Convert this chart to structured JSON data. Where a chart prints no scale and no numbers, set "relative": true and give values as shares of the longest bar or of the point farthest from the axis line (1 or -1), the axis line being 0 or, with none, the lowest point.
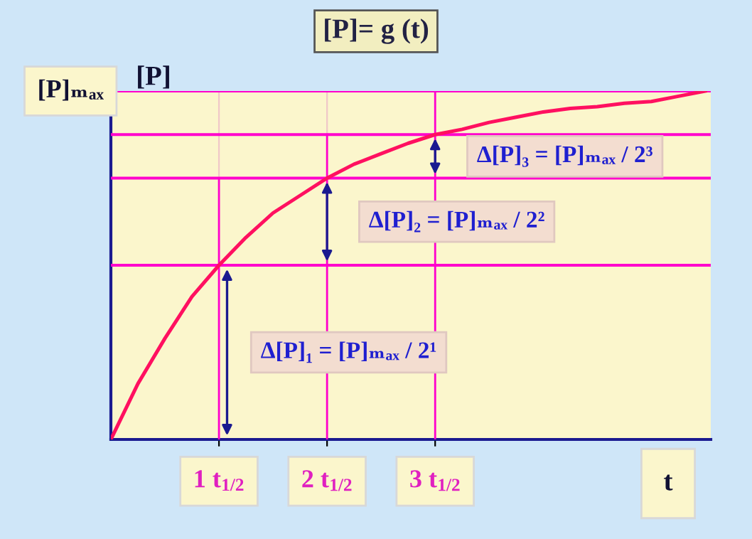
{
  "chart_data": {
    "type": "line",
    "title": "[P]= g (t)",
    "ylabel": "[P]",
    "xlabel": "t",
    "relative": true,
    "categories": [
      null,
      null,
      null,
      null,
      "1 t$_{1/2}$",
      null,
      null,
      null,
      "2 t$_{1/2}$",
      null,
      null,
      null,
      "3 t$_{1/2}$",
      null,
      null,
      null,
      null,
      null,
      null,
      null,
      null,
      null,
      null
    ],
    "series": [
      {
        "color": "#ff1060",
        "values": [
          0,
          0.16,
          0.29,
          0.41,
          0.5,
          0.58,
          0.65,
          0.7,
          0.75,
          0.79,
          0.82,
          0.85,
          0.875,
          0.89,
          0.91,
          0.925,
          0.94,
          0.95,
          0.955,
          0.965,
          0.97,
          0.985,
          1
        ]
      }
    ],
    "ref_lines": [
      {
        "axis": "y",
        "value": 1,
        "label": "[P]ₘₐₓ",
        "color": "#ff00cc"
      },
      {
        "axis": "y",
        "value": 0.5,
        "color": "#ff00cc"
      },
      {
        "axis": "y",
        "value": 0.75,
        "color": "#ff00cc"
      },
      {
        "axis": "y",
        "value": 0.875,
        "color": "#ff00cc"
      }
    ],
    "annotations": [
      "Δ[P]₁ = [P]ₘₐₓ / 2¹",
      "Δ[P]₂ = [P]ₘₐₓ / 2²",
      "Δ[P]₃ = [P]ₘₐₓ / 2³"
    ],
    "grid": "x",
    "marker": "none",
    "line_style": "solid"
  }
}
